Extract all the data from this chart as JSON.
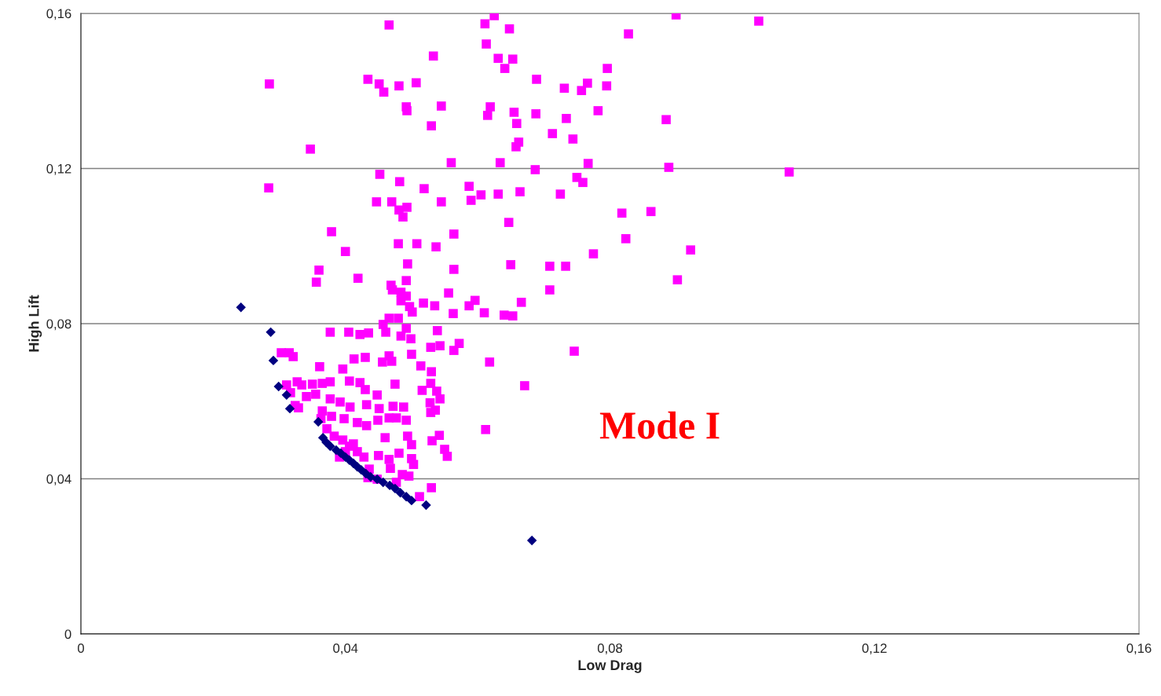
{
  "chart_data": {
    "type": "scatter",
    "xlabel": "Low Drag",
    "ylabel": "High Lift",
    "xlim": [
      0,
      0.16
    ],
    "ylim": [
      0,
      0.16
    ],
    "xticks": [
      0,
      {
        "value": 0.04,
        "label": "0,04"
      },
      {
        "value": 0.08,
        "label": "0,08"
      },
      {
        "value": 0.12,
        "label": "0,12"
      },
      {
        "value": 0.16,
        "label": "0,16"
      }
    ],
    "yticks": [
      0,
      {
        "value": 0.04,
        "label": "0,04"
      },
      {
        "value": 0.08,
        "label": "0,08"
      },
      {
        "value": 0.12,
        "label": "0,12"
      },
      {
        "value": 0.16,
        "label": "0,16"
      }
    ],
    "grid": "y",
    "legend": false,
    "annotations": [
      "Mode I"
    ],
    "series": [
      {
        "color": "#ff00ff",
        "marker": "square",
        "x": [
          0.0285,
          0.0284,
          0.0347,
          0.0379,
          0.04,
          0.036,
          0.0356,
          0.0419,
          0.0434,
          0.0451,
          0.0458,
          0.0466,
          0.0481,
          0.0507,
          0.0492,
          0.0493,
          0.0545,
          0.053,
          0.0533,
          0.0452,
          0.0482,
          0.0519,
          0.0447,
          0.047,
          0.0481,
          0.0487,
          0.0493,
          0.048,
          0.0508,
          0.0537,
          0.0545,
          0.056,
          0.0564,
          0.0564,
          0.0494,
          0.0492,
          0.0469,
          0.0471,
          0.0484,
          0.0492,
          0.0484,
          0.0518,
          0.0535,
          0.0497,
          0.0501,
          0.0466,
          0.048,
          0.0457,
          0.0492,
          0.0539,
          0.0556,
          0.0563,
          0.0377,
          0.0405,
          0.0422,
          0.0435,
          0.0461,
          0.0484,
          0.0499,
          0.0466,
          0.05,
          0.0529,
          0.0543,
          0.0572,
          0.0564,
          0.0303,
          0.0315,
          0.0321,
          0.0361,
          0.0396,
          0.0413,
          0.043,
          0.0456,
          0.047,
          0.0514,
          0.053,
          0.0587,
          0.0596,
          0.061,
          0.064,
          0.0653,
          0.0666,
          0.065,
          0.0647,
          0.0587,
          0.059,
          0.0605,
          0.0631,
          0.0664,
          0.0687,
          0.0725,
          0.0634,
          0.0658,
          0.0662,
          0.0659,
          0.0615,
          0.0619,
          0.0655,
          0.0688,
          0.0713,
          0.0744,
          0.0734,
          0.0731,
          0.0757,
          0.0766,
          0.0795,
          0.0782,
          0.0796,
          0.075,
          0.0759,
          0.0767,
          0.0775,
          0.0709,
          0.0733,
          0.0709,
          0.0818,
          0.0824,
          0.0862,
          0.0885,
          0.0889,
          0.0922,
          0.0902,
          0.0828,
          0.09,
          0.1025,
          0.1071,
          0.0611,
          0.0625,
          0.0648,
          0.0613,
          0.0631,
          0.0653,
          0.0641,
          0.0689,
          0.0746,
          0.0618,
          0.0671,
          0.0612,
          0.053,
          0.0512,
          0.0327,
          0.0334,
          0.035,
          0.0365,
          0.0377,
          0.0406,
          0.0422,
          0.043,
          0.0448,
          0.0475,
          0.0311,
          0.0317,
          0.0341,
          0.0355,
          0.0329,
          0.0324,
          0.0377,
          0.0392,
          0.0407,
          0.0432,
          0.0451,
          0.0472,
          0.0488,
          0.0516,
          0.0529,
          0.0538,
          0.0543,
          0.0528,
          0.0529,
          0.0536,
          0.0365,
          0.0363,
          0.0379,
          0.0398,
          0.0418,
          0.0432,
          0.0449,
          0.0466,
          0.0477,
          0.0492,
          0.046,
          0.0494,
          0.05,
          0.0531,
          0.0542,
          0.055,
          0.0554,
          0.0372,
          0.0383,
          0.0396,
          0.0406,
          0.0418,
          0.0428,
          0.045,
          0.0466,
          0.0481,
          0.05,
          0.0503,
          0.0468,
          0.0436,
          0.0486,
          0.0496,
          0.0448,
          0.0434,
          0.0477,
          0.0412,
          0.04,
          0.0391
        ],
        "values": [
          0.1418,
          0.115,
          0.125,
          0.1037,
          0.0986,
          0.0938,
          0.0907,
          0.0917,
          0.143,
          0.1418,
          0.1397,
          0.157,
          0.1413,
          0.1421,
          0.1359,
          0.1349,
          0.1361,
          0.131,
          0.149,
          0.1185,
          0.1166,
          0.1148,
          0.1114,
          0.1114,
          0.1093,
          0.1075,
          0.11,
          0.1006,
          0.1006,
          0.0998,
          0.1114,
          0.1215,
          0.1031,
          0.094,
          0.0954,
          0.0911,
          0.0899,
          0.0887,
          0.0881,
          0.0871,
          0.0859,
          0.0853,
          0.0846,
          0.0844,
          0.083,
          0.0814,
          0.0814,
          0.0798,
          0.0788,
          0.0782,
          0.0879,
          0.0826,
          0.0778,
          0.0778,
          0.0772,
          0.0776,
          0.0778,
          0.0768,
          0.0761,
          0.0717,
          0.0721,
          0.0739,
          0.0743,
          0.0749,
          0.0731,
          0.0725,
          0.0725,
          0.0715,
          0.0689,
          0.0683,
          0.0709,
          0.0713,
          0.0701,
          0.0703,
          0.0691,
          0.0676,
          0.0846,
          0.086,
          0.0828,
          0.0822,
          0.082,
          0.0855,
          0.0952,
          0.1061,
          0.1154,
          0.1118,
          0.1132,
          0.1134,
          0.114,
          0.1197,
          0.1134,
          0.1215,
          0.1256,
          0.1268,
          0.1316,
          0.1337,
          0.1359,
          0.1345,
          0.1341,
          0.129,
          0.1276,
          0.1329,
          0.1407,
          0.1401,
          0.142,
          0.1413,
          0.1349,
          0.1458,
          0.1177,
          0.1164,
          0.1213,
          0.098,
          0.0948,
          0.0948,
          0.0887,
          0.1085,
          0.1019,
          0.1089,
          0.1326,
          0.1203,
          0.099,
          0.0913,
          0.1547,
          0.1596,
          0.158,
          0.1191,
          0.1573,
          0.1594,
          0.156,
          0.1521,
          0.1484,
          0.1482,
          0.1458,
          0.143,
          0.0729,
          0.0701,
          0.064,
          0.0527,
          0.0377,
          0.0354,
          0.065,
          0.0642,
          0.0644,
          0.0646,
          0.065,
          0.0652,
          0.0648,
          0.063,
          0.0616,
          0.0644,
          0.0642,
          0.0622,
          0.0612,
          0.0618,
          0.0583,
          0.0589,
          0.0606,
          0.0598,
          0.0585,
          0.0591,
          0.0581,
          0.0587,
          0.0585,
          0.0628,
          0.0646,
          0.0626,
          0.0606,
          0.0596,
          0.0571,
          0.0577,
          0.0575,
          0.0555,
          0.0561,
          0.0555,
          0.0545,
          0.0537,
          0.0551,
          0.0557,
          0.0557,
          0.0551,
          0.0506,
          0.051,
          0.0488,
          0.0498,
          0.0512,
          0.0476,
          0.0458,
          0.0529,
          0.051,
          0.05,
          0.0484,
          0.047,
          0.0456,
          0.046,
          0.045,
          0.0466,
          0.0452,
          0.0437,
          0.0427,
          0.0425,
          0.0411,
          0.0407,
          0.0399,
          0.0403,
          0.0391,
          0.049,
          0.047,
          0.0456
        ]
      },
      {
        "color": "#000080",
        "marker": "diamond",
        "x": [
          0.0242,
          0.0287,
          0.0291,
          0.0299,
          0.0311,
          0.0316,
          0.0359,
          0.0366,
          0.0371,
          0.0377,
          0.0386,
          0.0393,
          0.04,
          0.0406,
          0.0412,
          0.0418,
          0.0424,
          0.0431,
          0.0438,
          0.0448,
          0.0457,
          0.0467,
          0.0475,
          0.0483,
          0.0492,
          0.05,
          0.0522,
          0.0682
        ],
        "values": [
          0.0842,
          0.0778,
          0.0705,
          0.0638,
          0.0616,
          0.0581,
          0.0547,
          0.0506,
          0.0494,
          0.0484,
          0.0474,
          0.0466,
          0.0456,
          0.0448,
          0.044,
          0.0431,
          0.0423,
          0.0413,
          0.0405,
          0.0399,
          0.0391,
          0.0383,
          0.0375,
          0.0364,
          0.0354,
          0.0344,
          0.0332,
          0.0241
        ]
      }
    ]
  }
}
